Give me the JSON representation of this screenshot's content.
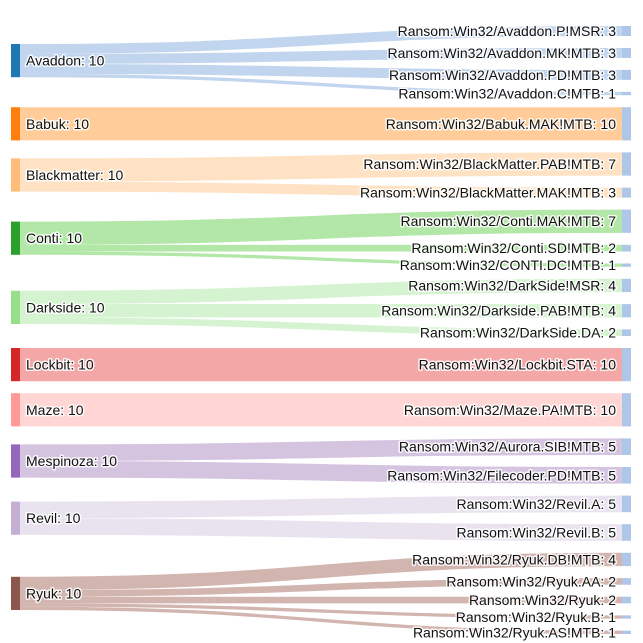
{
  "chart_data": {
    "type": "sankey",
    "title": "",
    "sources": [
      {
        "name": "Avaddon",
        "value": 10,
        "color": "#1f77b4",
        "link_color": "#aec7e8",
        "targets": [
          {
            "name": "Ransom:Win32/Avaddon.P!MSR",
            "value": 3
          },
          {
            "name": "Ransom:Win32/Avaddon.MK!MTB",
            "value": 3
          },
          {
            "name": "Ransom:Win32/Avaddon.PD!MTB",
            "value": 3
          },
          {
            "name": "Ransom:Win32/Avaddon.C!MTB",
            "value": 1
          }
        ]
      },
      {
        "name": "Babuk",
        "value": 10,
        "color": "#ff7f0e",
        "link_color": "#ffbb78",
        "targets": [
          {
            "name": "Ransom:Win32/Babuk.MAK!MTB",
            "value": 10
          }
        ]
      },
      {
        "name": "Blackmatter",
        "value": 10,
        "color": "#ffbb78",
        "link_color": "#ffd8b0",
        "targets": [
          {
            "name": "Ransom:Win32/BlackMatter.PAB!MTB",
            "value": 7
          },
          {
            "name": "Ransom:Win32/BlackMatter.MAK!MTB",
            "value": 3
          }
        ]
      },
      {
        "name": "Conti",
        "value": 10,
        "color": "#2ca02c",
        "link_color": "#98df8a",
        "targets": [
          {
            "name": "Ransom:Win32/Conti.MAK!MTB",
            "value": 7
          },
          {
            "name": "Ransom:Win32/Conti.SD!MTB",
            "value": 2
          },
          {
            "name": "Ransom:Win32/CONTI.DC!MTB",
            "value": 1
          }
        ]
      },
      {
        "name": "Darkside",
        "value": 10,
        "color": "#98df8a",
        "link_color": "#c7efc0",
        "targets": [
          {
            "name": "Ransom:Win32/DarkSide!MSR",
            "value": 4
          },
          {
            "name": "Ransom:Win32/Darkside.PAB!MTB",
            "value": 4
          },
          {
            "name": "Ransom:Win32/DarkSide.DA",
            "value": 2
          }
        ]
      },
      {
        "name": "Lockbit",
        "value": 10,
        "color": "#d62728",
        "link_color": "#f08a8a",
        "targets": [
          {
            "name": "Ransom:Win32/Lockbit.STA",
            "value": 10
          }
        ]
      },
      {
        "name": "Maze",
        "value": 10,
        "color": "#ff9896",
        "link_color": "#ffc8c6",
        "targets": [
          {
            "name": "Ransom:Win32/Maze.PA!MTB",
            "value": 10
          }
        ]
      },
      {
        "name": "Mespinoza",
        "value": 10,
        "color": "#9467bd",
        "link_color": "#c5b0d5",
        "targets": [
          {
            "name": "Ransom:Win32/Aurora.SIB!MTB",
            "value": 5
          },
          {
            "name": "Ransom:Win32/Filecoder.PD!MTB",
            "value": 5
          }
        ]
      },
      {
        "name": "Revil",
        "value": 10,
        "color": "#c5b0d5",
        "link_color": "#e2d8ea",
        "targets": [
          {
            "name": "Ransom:Win32/Revil.A",
            "value": 5
          },
          {
            "name": "Ransom:Win32/Revil.B",
            "value": 5
          }
        ]
      },
      {
        "name": "Ryuk",
        "value": 10,
        "color": "#8c564b",
        "link_color": "#c49c94",
        "targets": [
          {
            "name": "Ransom:Win32/Ryuk.DB!MTB",
            "value": 4
          },
          {
            "name": "Ransom:Win32/Ryuk.AA",
            "value": 2
          },
          {
            "name": "Ransom:Win32/Ryuk",
            "value": 2
          },
          {
            "name": "Ransom:Win32/Ryuk.B",
            "value": 1
          },
          {
            "name": "Ransom:Win32/Ryuk.AS!MTB",
            "value": 1
          }
        ]
      }
    ],
    "target_node_color": "#aec7e8"
  }
}
